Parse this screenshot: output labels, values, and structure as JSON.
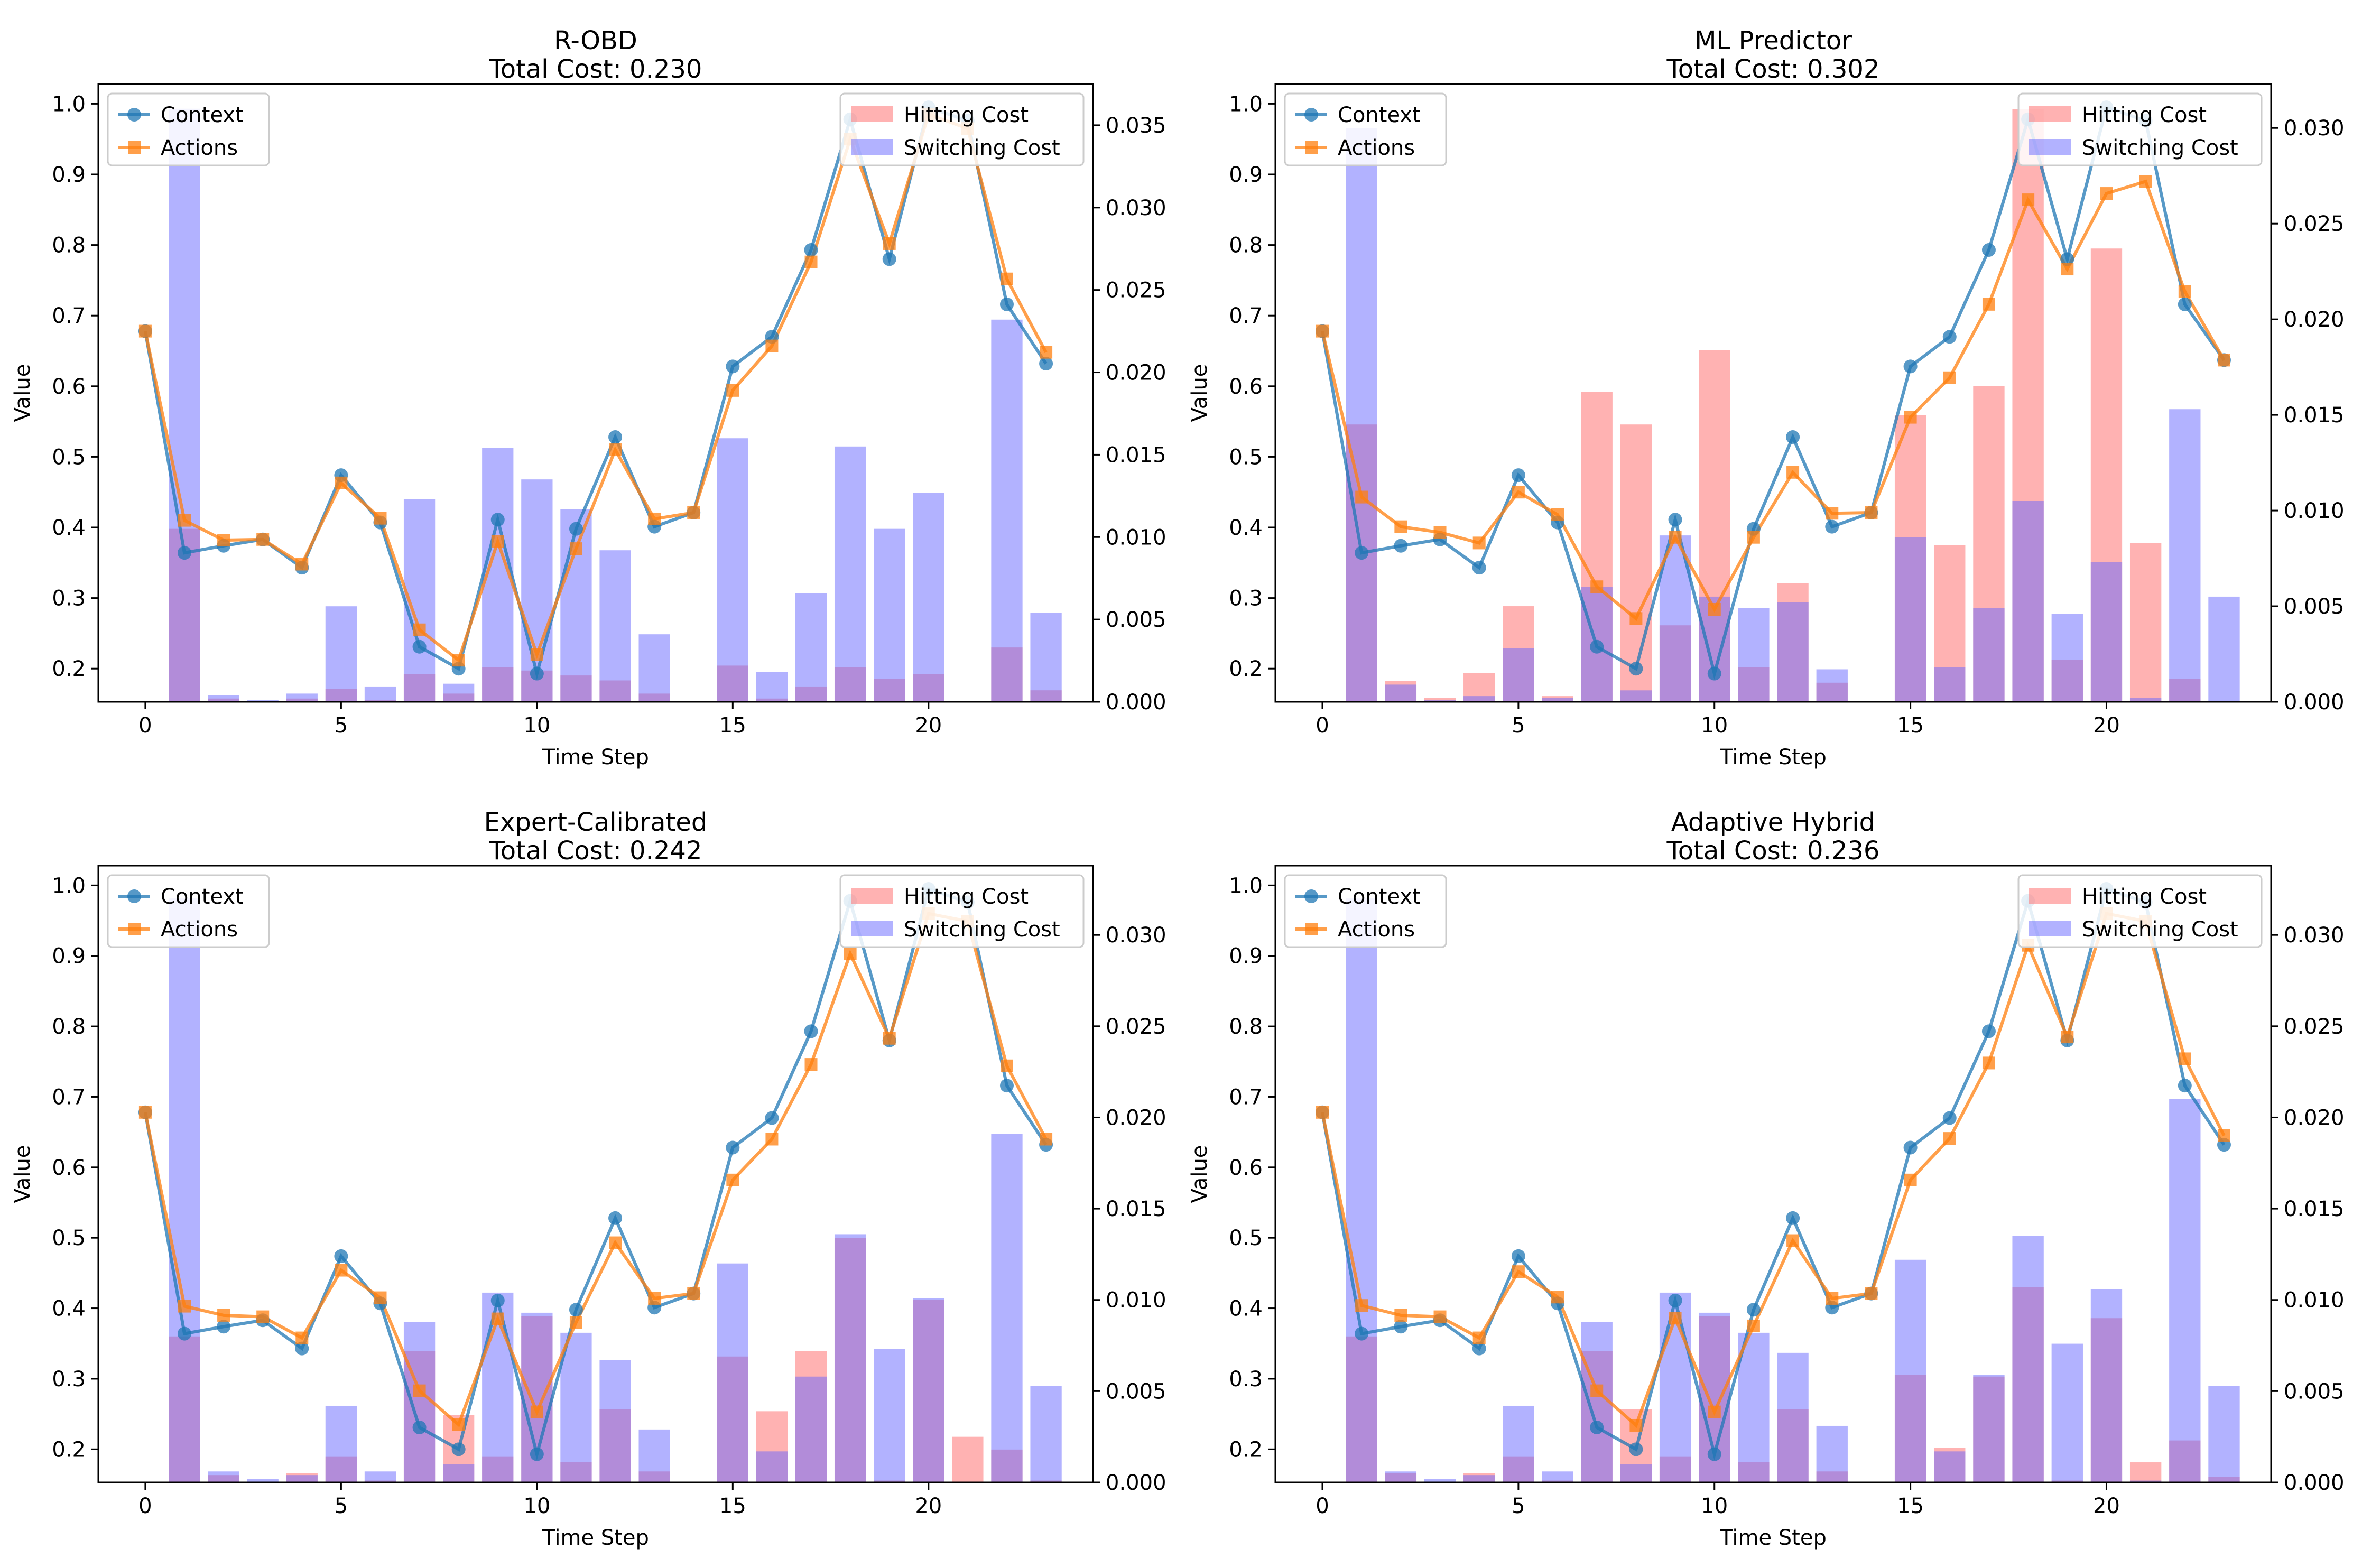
{
  "chart_data": [
    {
      "type": "line+bar",
      "title": "R-OBD",
      "subtitle": "Total Cost: 0.230",
      "xlabel": "Time Step",
      "ylabel": "Value",
      "xlim": [
        -1.2,
        24.2
      ],
      "ylim": [
        0.153,
        1.028
      ],
      "y2lim": [
        0,
        0.0375
      ],
      "xticks": [
        0,
        5,
        10,
        15,
        20
      ],
      "yticks": [
        0.2,
        0.3,
        0.4,
        0.5,
        0.6,
        0.7,
        0.8,
        0.9,
        1.0
      ],
      "y2ticks": [
        0.0,
        0.005,
        0.01,
        0.015,
        0.02,
        0.025,
        0.03,
        0.035
      ],
      "legend_left": [
        "Context",
        "Actions"
      ],
      "legend_right": [
        "Hitting Cost",
        "Switching Cost"
      ],
      "context": [
        0.678,
        0.364,
        0.374,
        0.383,
        0.343,
        0.474,
        0.407,
        0.231,
        0.2,
        0.411,
        0.193,
        0.398,
        0.528,
        0.401,
        0.421,
        0.628,
        0.67,
        0.793,
        0.978,
        0.78,
        0.995,
        0.976,
        0.716,
        0.632
      ],
      "actions": [
        0.678,
        0.41,
        0.382,
        0.383,
        0.348,
        0.463,
        0.413,
        0.255,
        0.212,
        0.38,
        0.22,
        0.37,
        0.51,
        0.412,
        0.421,
        0.594,
        0.657,
        0.776,
        0.95,
        0.802,
        0.985,
        0.965,
        0.752,
        0.648
      ],
      "hitting_cost": [
        0,
        0.0105,
        0.0002,
        0,
        0.0002,
        0.0008,
        0.0001,
        0.0017,
        0.0005,
        0.0021,
        0.0019,
        0.0016,
        0.0013,
        0.0005,
        0,
        0.0022,
        0.0002,
        0.0009,
        0.0021,
        0.0014,
        0.0017,
        0,
        0.0033,
        0.0007
      ],
      "switching_cost": [
        0,
        0.036,
        0.0004,
        0.0001,
        0.0005,
        0.0058,
        0.0009,
        0.0123,
        0.0011,
        0.0154,
        0.0135,
        0.0117,
        0.0092,
        0.0041,
        0,
        0.016,
        0.0018,
        0.0066,
        0.0155,
        0.0105,
        0.0127,
        0,
        0.0232,
        0.0054
      ]
    },
    {
      "type": "line+bar",
      "title": "ML Predictor",
      "subtitle": "Total Cost: 0.302",
      "xlabel": "Time Step",
      "ylabel": "Value",
      "xlim": [
        -1.2,
        24.2
      ],
      "ylim": [
        0.153,
        1.028
      ],
      "y2lim": [
        0,
        0.0323
      ],
      "xticks": [
        0,
        5,
        10,
        15,
        20
      ],
      "yticks": [
        0.2,
        0.3,
        0.4,
        0.5,
        0.6,
        0.7,
        0.8,
        0.9,
        1.0
      ],
      "y2ticks": [
        0.0,
        0.005,
        0.01,
        0.015,
        0.02,
        0.025,
        0.03
      ],
      "legend_left": [
        "Context",
        "Actions"
      ],
      "legend_right": [
        "Hitting Cost",
        "Switching Cost"
      ],
      "context": [
        0.678,
        0.364,
        0.374,
        0.383,
        0.343,
        0.474,
        0.407,
        0.231,
        0.2,
        0.411,
        0.193,
        0.398,
        0.528,
        0.401,
        0.421,
        0.628,
        0.67,
        0.793,
        0.978,
        0.78,
        0.995,
        0.976,
        0.716,
        0.637
      ],
      "actions": [
        0.678,
        0.443,
        0.401,
        0.393,
        0.378,
        0.45,
        0.418,
        0.316,
        0.271,
        0.386,
        0.284,
        0.386,
        0.478,
        0.42,
        0.421,
        0.556,
        0.612,
        0.716,
        0.864,
        0.766,
        0.873,
        0.89,
        0.734,
        0.637
      ],
      "hitting_cost": [
        0,
        0.0145,
        0.0011,
        0.0002,
        0.0015,
        0.005,
        0.0003,
        0.0162,
        0.0145,
        0.004,
        0.0184,
        0.0018,
        0.0062,
        0.001,
        0,
        0.015,
        0.0082,
        0.0165,
        0.031,
        0.0022,
        0.0237,
        0.0083,
        0.0012,
        0
      ],
      "switching_cost": [
        0,
        0.03,
        0.0009,
        0.0001,
        0.0003,
        0.0028,
        0.0002,
        0.006,
        0.0006,
        0.0087,
        0.0055,
        0.0049,
        0.0052,
        0.0017,
        0,
        0.0086,
        0.0018,
        0.0049,
        0.0105,
        0.0046,
        0.0073,
        0.0002,
        0.0153,
        0.0055
      ]
    },
    {
      "type": "line+bar",
      "title": "Expert-Calibrated",
      "subtitle": "Total Cost: 0.242",
      "xlabel": "Time Step",
      "ylabel": "Value",
      "xlim": [
        -1.2,
        24.2
      ],
      "ylim": [
        0.153,
        1.028
      ],
      "y2lim": [
        0,
        0.0338
      ],
      "xticks": [
        0,
        5,
        10,
        15,
        20
      ],
      "yticks": [
        0.2,
        0.3,
        0.4,
        0.5,
        0.6,
        0.7,
        0.8,
        0.9,
        1.0
      ],
      "y2ticks": [
        0.0,
        0.005,
        0.01,
        0.015,
        0.02,
        0.025,
        0.03
      ],
      "legend_left": [
        "Context",
        "Actions"
      ],
      "legend_right": [
        "Hitting Cost",
        "Switching Cost"
      ],
      "context": [
        0.678,
        0.364,
        0.374,
        0.383,
        0.343,
        0.474,
        0.407,
        0.231,
        0.2,
        0.411,
        0.193,
        0.398,
        0.528,
        0.401,
        0.421,
        0.628,
        0.67,
        0.793,
        0.978,
        0.78,
        0.995,
        0.976,
        0.716,
        0.632
      ],
      "actions": [
        0.678,
        0.403,
        0.39,
        0.388,
        0.358,
        0.454,
        0.415,
        0.283,
        0.235,
        0.385,
        0.253,
        0.38,
        0.493,
        0.414,
        0.421,
        0.582,
        0.64,
        0.746,
        0.903,
        0.783,
        0.96,
        0.949,
        0.744,
        0.64
      ],
      "hitting_cost": [
        0,
        0.008,
        0.0004,
        0,
        0.0005,
        0.0014,
        0.0001,
        0.0072,
        0.0037,
        0.0014,
        0.0091,
        0.0011,
        0.004,
        0.0006,
        0,
        0.0069,
        0.0039,
        0.0072,
        0.0134,
        0.0001,
        0.01,
        0.0025,
        0.0018,
        0.0001
      ],
      "switching_cost": [
        0,
        0.032,
        0.0006,
        0.0002,
        0.0004,
        0.0042,
        0.0006,
        0.0088,
        0.001,
        0.0104,
        0.0093,
        0.0082,
        0.0067,
        0.0029,
        0,
        0.012,
        0.0017,
        0.0058,
        0.0136,
        0.0073,
        0.0101,
        0,
        0.0191,
        0.0053
      ]
    },
    {
      "type": "line+bar",
      "title": "Adaptive Hybrid",
      "subtitle": "Total Cost: 0.236",
      "xlabel": "Time Step",
      "ylabel": "Value",
      "xlim": [
        -1.2,
        24.2
      ],
      "ylim": [
        0.153,
        1.028
      ],
      "y2lim": [
        0,
        0.0338
      ],
      "xticks": [
        0,
        5,
        10,
        15,
        20
      ],
      "yticks": [
        0.2,
        0.3,
        0.4,
        0.5,
        0.6,
        0.7,
        0.8,
        0.9,
        1.0
      ],
      "y2ticks": [
        0.0,
        0.005,
        0.01,
        0.015,
        0.02,
        0.025,
        0.03
      ],
      "legend_left": [
        "Context",
        "Actions"
      ],
      "legend_right": [
        "Hitting Cost",
        "Switching Cost"
      ],
      "context": [
        0.678,
        0.364,
        0.374,
        0.383,
        0.343,
        0.474,
        0.407,
        0.231,
        0.2,
        0.411,
        0.193,
        0.398,
        0.528,
        0.401,
        0.421,
        0.628,
        0.67,
        0.793,
        0.978,
        0.78,
        0.995,
        0.976,
        0.716,
        0.632
      ],
      "actions": [
        0.678,
        0.404,
        0.39,
        0.388,
        0.358,
        0.452,
        0.416,
        0.283,
        0.234,
        0.386,
        0.253,
        0.375,
        0.496,
        0.414,
        0.421,
        0.582,
        0.641,
        0.748,
        0.915,
        0.785,
        0.96,
        0.949,
        0.754,
        0.645
      ],
      "hitting_cost": [
        0,
        0.008,
        0.0005,
        0,
        0.0005,
        0.0014,
        0.0001,
        0.0072,
        0.004,
        0.0014,
        0.0091,
        0.0011,
        0.004,
        0.0006,
        0,
        0.0059,
        0.0019,
        0.0058,
        0.0107,
        0.0001,
        0.009,
        0.0011,
        0.0023,
        0.0003
      ],
      "switching_cost": [
        0,
        0.032,
        0.0006,
        0.0002,
        0.0004,
        0.0042,
        0.0006,
        0.0088,
        0.001,
        0.0104,
        0.0093,
        0.0082,
        0.0071,
        0.0031,
        0,
        0.0122,
        0.0017,
        0.0059,
        0.0135,
        0.0076,
        0.0106,
        0.0001,
        0.021,
        0.0053
      ]
    }
  ],
  "colors": {
    "context": "#1f77b4",
    "actions": "#ff7f0e",
    "hitting": "#ff6666",
    "switching": "#6666ff"
  }
}
